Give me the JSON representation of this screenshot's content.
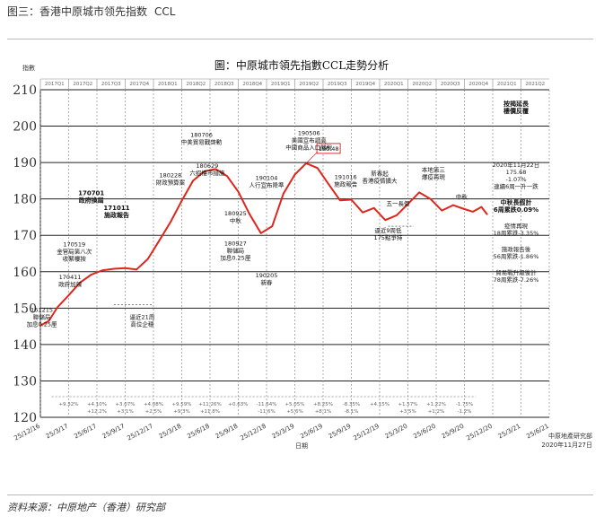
{
  "figure_title": "图三：香港中原城市领先指数",
  "figure_title_en": "CCL",
  "source": "资料来源：中原地产（香港）研究部",
  "chart_data": {
    "type": "line",
    "title": "圖：中原城市領先指數CCL走勢分析",
    "ylabel": "指數",
    "xlabel": "日期",
    "ylim": [
      120,
      210
    ],
    "yticks": [
      120,
      130,
      140,
      150,
      160,
      170,
      180,
      190,
      200,
      210
    ],
    "x_tick_labels": [
      "25/12/16",
      "25/3/17",
      "25/6/17",
      "25/9/17",
      "25/12/17",
      "25/3/18",
      "25/6/18",
      "25/9/18",
      "25/12/18",
      "25/3/19",
      "25/6/19",
      "25/9/19",
      "25/12/19",
      "25/3/20",
      "25/6/20",
      "25/9/20",
      "25/12/20",
      "25/3/21",
      "25/6/21"
    ],
    "quarter_labels": [
      "2017Q1",
      "2017Q2",
      "2017Q3",
      "2017Q4",
      "2018Q1",
      "2018Q2",
      "2018Q3",
      "2018Q4",
      "2019Q1",
      "2019Q2",
      "2019Q3",
      "2019Q4",
      "2020Q1",
      "2020Q2",
      "2020Q3",
      "2020Q4",
      "2021Q1",
      "2021Q2"
    ],
    "series": [
      {
        "color": "#e0261b",
        "x": [
          0,
          0.3,
          0.6,
          1,
          1.4,
          1.8,
          2.2,
          2.6,
          3,
          3.4,
          3.8,
          4.2,
          4.6,
          5,
          5.4,
          5.8,
          6.2,
          6.6,
          7,
          7.4,
          7.8,
          8.2,
          8.6,
          9,
          9.4,
          9.8,
          10.2,
          10.6,
          11,
          11.4,
          11.8,
          12.2,
          12.6,
          13,
          13.4,
          13.8,
          14.2,
          14.6,
          15,
          15.3,
          15.6,
          15.8
        ],
        "y": [
          145.2,
          146.5,
          150.2,
          153.5,
          157.0,
          159.2,
          160.4,
          160.8,
          161.0,
          160.6,
          163.5,
          168.5,
          173.6,
          179.5,
          185.0,
          187.6,
          188.2,
          186.3,
          182.0,
          175.8,
          170.6,
          172.5,
          181.5,
          186.7,
          189.8,
          188.5,
          184.0,
          179.6,
          179.8,
          176.3,
          177.5,
          174.2,
          175.5,
          178.6,
          181.8,
          180.0,
          176.8,
          178.3,
          177.2,
          176.5,
          177.8,
          175.8
        ]
      }
    ],
    "annotations": [
      {
        "x": 0.05,
        "y": 149,
        "lines": [
          "161215",
          "聯儲局",
          "加息0.25厘"
        ],
        "bold": false
      },
      {
        "x": 1.2,
        "y": 167,
        "lines": [
          "170519",
          "金管局第八次",
          "收緊樓按"
        ],
        "bold": false
      },
      {
        "x": 1.05,
        "y": 158,
        "lines": [
          "170411",
          "政府加辣"
        ],
        "bold": false
      },
      {
        "x": 1.8,
        "y": 181,
        "lines": [
          "170701",
          "政府換屆"
        ],
        "bold": true
      },
      {
        "x": 2.7,
        "y": 177,
        "lines": [
          "171011",
          "施政報告"
        ],
        "bold": true
      },
      {
        "x": 3.6,
        "y": 147,
        "lines": [
          "逼近21周",
          "高位企穩"
        ],
        "bold": false
      },
      {
        "x": 4.6,
        "y": 186,
        "lines": [
          "180228",
          "財政預算案"
        ],
        "bold": false
      },
      {
        "x": 5.7,
        "y": 197,
        "lines": [
          "180706",
          "中美貿易戰啓動"
        ],
        "bold": false
      },
      {
        "x": 5.9,
        "y": 188.5,
        "lines": [
          "180629",
          "六招樓市措施"
        ],
        "bold": false
      },
      {
        "x": 6.9,
        "y": 175.5,
        "lines": [
          "180925",
          "中秋"
        ],
        "bold": false
      },
      {
        "x": 6.9,
        "y": 167.2,
        "lines": [
          "180927",
          "聯儲局",
          "加息0.25厘"
        ],
        "bold": false
      },
      {
        "x": 8.0,
        "y": 185.2,
        "lines": [
          "190104",
          "人行宣布降準"
        ],
        "bold": false
      },
      {
        "x": 8.0,
        "y": 158.5,
        "lines": [
          "190205",
          "新春"
        ],
        "bold": false
      },
      {
        "x": 9.5,
        "y": 197.5,
        "lines": [
          "190506",
          "美國宣布調高",
          "中國商品入口關稅"
        ],
        "bold": false
      },
      {
        "x": 10.8,
        "y": 185.5,
        "lines": [
          "191016",
          "施政報告"
        ],
        "bold": false
      },
      {
        "x": 12.0,
        "y": 186.5,
        "lines": [
          "新春起",
          "香港疫情擴大"
        ],
        "bold": false
      },
      {
        "x": 12.65,
        "y": 178.2,
        "lines": [
          "五一長假"
        ],
        "bold": false
      },
      {
        "x": 13.9,
        "y": 187.5,
        "lines": [
          "本地第三",
          "爆疫再現"
        ],
        "bold": false
      },
      {
        "x": 12.3,
        "y": 170.8,
        "lines": [
          "逼近9周低",
          "175點爭持"
        ],
        "bold": false
      },
      {
        "x": 14.9,
        "y": 180,
        "lines": [
          "中秋"
        ],
        "bold": false
      }
    ],
    "callout": "190.48",
    "right_notes": [
      {
        "lines": [
          "按揭延長",
          "樓價反覆"
        ],
        "bold": true
      },
      {
        "lines": [
          "2020年11月22日",
          "175.68",
          "-1.07%",
          "連續6周一升一跌"
        ],
        "bold": false
      },
      {
        "lines": [
          "中秋長假計",
          "6周累跌0.09%"
        ],
        "bold": true
      },
      {
        "lines": [
          "疫情再現",
          "18周累跌-3.35%"
        ],
        "bold": false
      },
      {
        "lines": [
          "施政報告後",
          "56周累跌-1.86%"
        ],
        "bold": false
      },
      {
        "lines": [
          "貿易戰升級後計",
          "78周累跌-7.26%"
        ],
        "bold": false
      }
    ],
    "quarter_changes": [
      "+9.32%",
      "+4.10%",
      "+3.07%",
      "+4.08%",
      "+9.59%",
      "+11.26%",
      "+0.63%",
      "-11.64%",
      "+5.05%",
      "+8.25%",
      "-8.35%",
      "+4.15%",
      "+1.57%",
      "+1.22%",
      "-1.75%"
    ],
    "quarter_changes_sub": [
      "",
      "+12.2%",
      "+3.1%",
      "+2.5%",
      "+9.3%",
      "+11.8%",
      "",
      "-11.6%",
      "+5.6%",
      "+8.1%",
      "-8.1%",
      "",
      "+3.5%",
      "+1.2%",
      "-1.2%"
    ],
    "footer": [
      "中原地產研究部",
      "2020年11月27日"
    ]
  }
}
